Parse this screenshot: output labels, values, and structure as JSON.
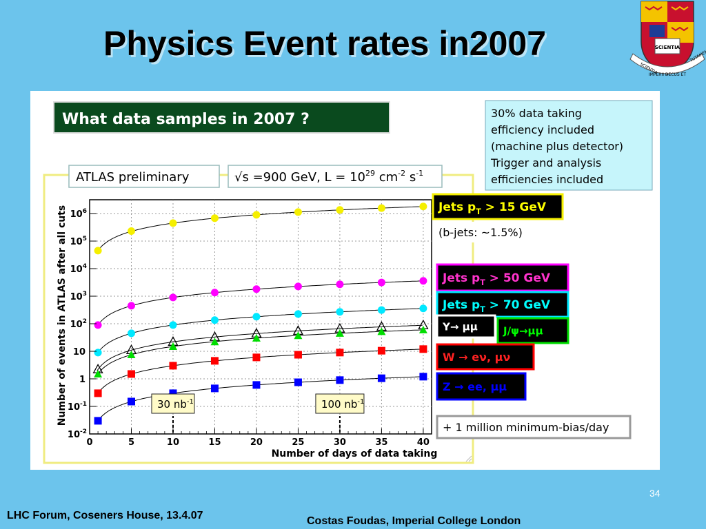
{
  "slide": {
    "title": "Physics Event rates in2007",
    "page_number": "34",
    "footer_left": "LHC Forum, Coseners House, 13.4.07",
    "footer_right": "Costas Foudas, Imperial College London",
    "background_color": "#6cc4ec"
  },
  "crest": {
    "icon": "imperial-college-crest-icon",
    "motto_left": "SCIENTIA",
    "motto_center": "IMPERII DECUS ET",
    "motto_right": "TUTAMEN",
    "book_label": "SCIENTIA"
  },
  "header_box": {
    "text": "What data samples in 2007  ?"
  },
  "info_box": {
    "lines": [
      "30% data taking",
      "efficiency included",
      "(machine plus detector)",
      "Trigger and analysis",
      "efficiencies included"
    ]
  },
  "chart_data": {
    "type": "scatter",
    "label_preliminary": "ATLAS preliminary",
    "label_conditions_prefix": "√s =900 GeV,  L = 10",
    "label_conditions_exp1": "29",
    "label_conditions_mid": " cm",
    "label_conditions_exp2": "-2",
    "label_conditions_s": " s",
    "label_conditions_exp3": "-1",
    "xlabel": "Number of days of data taking",
    "ylabel": "Number of events in ATLAS after all cuts",
    "xlim": [
      0,
      41
    ],
    "ylim_log10": [
      -2,
      6.5
    ],
    "y_scale": "log",
    "x_ticks": [
      0,
      5,
      10,
      15,
      20,
      25,
      30,
      35,
      40
    ],
    "y_ticks": [
      {
        "base": "10",
        "exp": "-2",
        "value": 0.01
      },
      {
        "base": "10",
        "exp": "-1",
        "value": 0.1
      },
      {
        "base": "1",
        "exp": "",
        "value": 1
      },
      {
        "base": "10",
        "exp": "",
        "value": 10
      },
      {
        "base": "10",
        "exp": "2",
        "value": 100
      },
      {
        "base": "10",
        "exp": "3",
        "value": 1000
      },
      {
        "base": "10",
        "exp": "4",
        "value": 10000
      },
      {
        "base": "10",
        "exp": "5",
        "value": 100000
      },
      {
        "base": "10",
        "exp": "6",
        "value": 1000000
      }
    ],
    "grid": true,
    "x": [
      1,
      5,
      10,
      15,
      20,
      25,
      30,
      35,
      40
    ],
    "series": [
      {
        "key": "jets15",
        "color": "#f5ef00",
        "marker": "circle",
        "values": [
          45000,
          230000,
          450000,
          680000,
          900000,
          1130000,
          1350000,
          1570000,
          1800000
        ]
      },
      {
        "key": "jets50",
        "color": "#ff00ff",
        "marker": "circle",
        "values": [
          90,
          450,
          900,
          1350,
          1800,
          2250,
          2700,
          3150,
          3600
        ]
      },
      {
        "key": "jets70",
        "color": "#00e8ff",
        "marker": "circle",
        "values": [
          9,
          45,
          90,
          135,
          180,
          225,
          270,
          315,
          360
        ]
      },
      {
        "key": "upsilon",
        "color": "#000000",
        "marker": "triangle-open",
        "values": [
          2.2,
          11,
          22,
          33,
          44,
          55,
          66,
          77,
          88
        ]
      },
      {
        "key": "jpsi",
        "color": "#00dd00",
        "marker": "triangle",
        "values": [
          1.5,
          7.5,
          15,
          22,
          30,
          37,
          45,
          52,
          60
        ]
      },
      {
        "key": "w",
        "color": "#ff0000",
        "marker": "square",
        "values": [
          0.3,
          1.5,
          3,
          4.5,
          6,
          7.5,
          9,
          10.5,
          12
        ]
      },
      {
        "key": "z",
        "color": "#0000ff",
        "marker": "square",
        "values": [
          0.03,
          0.15,
          0.3,
          0.45,
          0.6,
          0.75,
          0.9,
          1.05,
          1.2
        ]
      }
    ],
    "annotations": [
      {
        "text": "30 nb",
        "sup": "-1",
        "x": 10
      },
      {
        "text": "100 nb",
        "sup": "-1",
        "x": 30
      }
    ],
    "legend": [
      {
        "key": "jets15",
        "text": "Jets p",
        "sub": "T",
        "rest": " > 15 GeV",
        "bg": "#000000",
        "fg": "#ffff00",
        "border": "#f5ef00"
      },
      {
        "key": "bjets",
        "text": "(b-jets: ~1.5%)",
        "bg": "#ffffff",
        "fg": "#000000",
        "border": "none"
      },
      {
        "key": "jets50",
        "text": "Jets p",
        "sub": "T",
        "rest": " > 50 GeV",
        "bg": "#000000",
        "fg": "#ff33cc",
        "border": "#ff00ff"
      },
      {
        "key": "jets70",
        "text": "Jets p",
        "sub": "T",
        "rest": " > 70 GeV",
        "bg": "#000000",
        "fg": "#00ffff",
        "border": "#00e8ff"
      },
      {
        "key": "upsilon",
        "text": "Υ→  μμ",
        "bg": "#000000",
        "fg": "#ffffff",
        "border": "#ffffff"
      },
      {
        "key": "jpsi",
        "text": "J/ψ→μμ",
        "bg": "#000000",
        "fg": "#00ff00",
        "border": "#00dd00"
      },
      {
        "key": "w",
        "text": "W  →  eν,  μν",
        "bg": "#000000",
        "fg": "#ff2222",
        "border": "#ff0000"
      },
      {
        "key": "z",
        "text": "Z  →  ee, μμ",
        "bg": "#000000",
        "fg": "#0000ff",
        "border": "#0000ff"
      },
      {
        "key": "minbias",
        "text": "+ 1 million minimum-bias/day",
        "bg": "#ffffff",
        "fg": "#000000",
        "border": "#999999"
      }
    ]
  }
}
